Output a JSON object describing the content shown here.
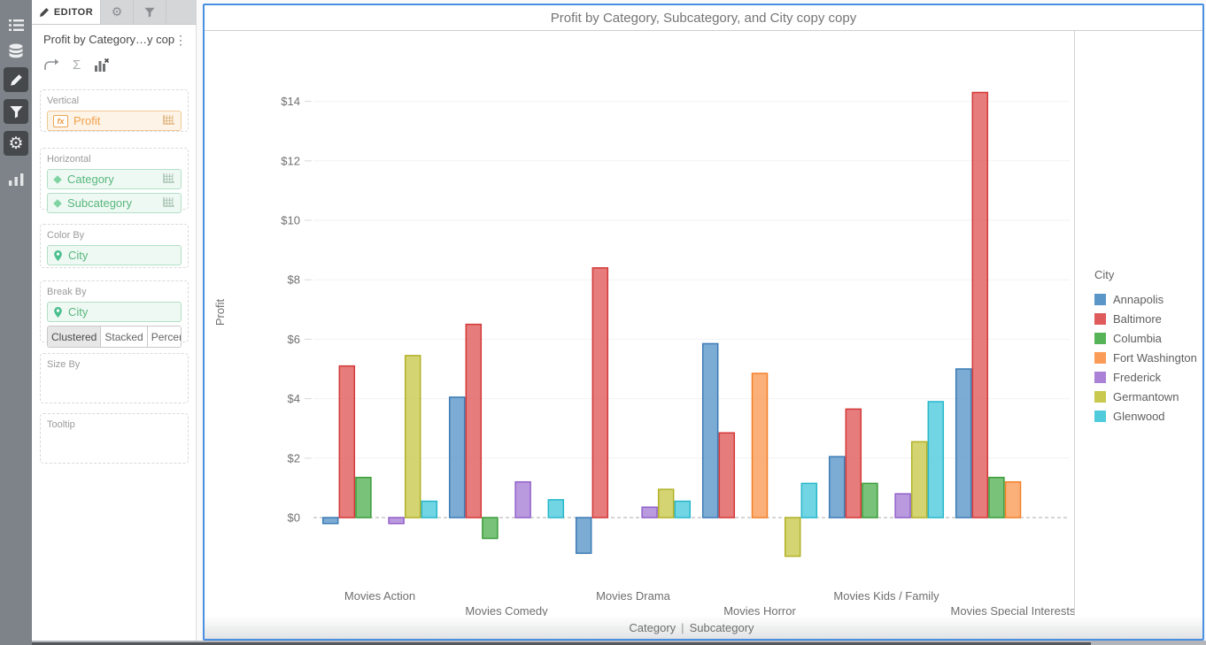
{
  "icons": {
    "gear": "⚙",
    "sigma": "Σ",
    "kebab": "⋮"
  },
  "editor_panel": {
    "tab_label": "EDITOR",
    "widget_title_truncated": "Profit by Category…y copy",
    "sections": {
      "vertical": {
        "label": "Vertical",
        "field": "Profit"
      },
      "horizontal": {
        "label": "Horizontal",
        "fields": [
          "Category",
          "Subcategory"
        ]
      },
      "color_by": {
        "label": "Color By",
        "field": "City"
      },
      "break_by": {
        "label": "Break By",
        "field": "City",
        "modes": [
          "Clustered",
          "Stacked",
          "Percent"
        ],
        "selected_mode": "Clustered"
      },
      "size_by": {
        "label": "Size By"
      },
      "tooltip": {
        "label": "Tooltip"
      }
    }
  },
  "chart": {
    "accent_border_color": "#4a90e2",
    "baseline_color": "#adadad",
    "gridline_color": "#f2f2f2"
  },
  "chart_data": {
    "type": "bar",
    "variant": "clustered",
    "title": "Profit by Category, Subcategory, and City copy copy",
    "ylabel": "Profit",
    "xlabel": "Category | Subcategory",
    "xlabel_parts": [
      "Category",
      "Subcategory"
    ],
    "categories": [
      "Movies Action",
      "Movies Comedy",
      "Movies Drama",
      "Movies Horror",
      "Movies Kids / Family",
      "Movies Special Interests"
    ],
    "y_ticks": [
      "$0",
      "$2",
      "$4",
      "$6",
      "$8",
      "$10",
      "$12",
      "$14"
    ],
    "y_tick_values": [
      0,
      2,
      4,
      6,
      8,
      10,
      12,
      14
    ],
    "ylim": [
      -2,
      15
    ],
    "grid": true,
    "legend_title": "City",
    "legend_position": "right",
    "series": [
      {
        "name": "Annapolis",
        "color": "#5b96c8",
        "stroke": "#3c7cb5",
        "values": [
          -0.2,
          4.05,
          -1.2,
          5.85,
          2.05,
          5.0
        ]
      },
      {
        "name": "Baltimore",
        "color": "#e05b5b",
        "stroke": "#d43939",
        "values": [
          5.1,
          6.5,
          8.4,
          2.85,
          3.65,
          14.3
        ]
      },
      {
        "name": "Columbia",
        "color": "#57b357",
        "stroke": "#3a9c3a",
        "values": [
          1.35,
          -0.7,
          null,
          null,
          1.15,
          1.35
        ]
      },
      {
        "name": "Fort Washington",
        "color": "#fa9c57",
        "stroke": "#f27f28",
        "values": [
          null,
          null,
          null,
          4.85,
          null,
          1.2
        ]
      },
      {
        "name": "Frederick",
        "color": "#a981d6",
        "stroke": "#9161c9",
        "values": [
          -0.2,
          1.2,
          0.35,
          null,
          0.8,
          null
        ]
      },
      {
        "name": "Germantown",
        "color": "#c9c94f",
        "stroke": "#b1b128",
        "values": [
          5.45,
          null,
          0.95,
          -1.3,
          2.55,
          null
        ]
      },
      {
        "name": "Glenwood",
        "color": "#4fcbdc",
        "stroke": "#27b7cc",
        "values": [
          0.55,
          0.6,
          0.55,
          1.15,
          3.9,
          null
        ]
      }
    ]
  }
}
